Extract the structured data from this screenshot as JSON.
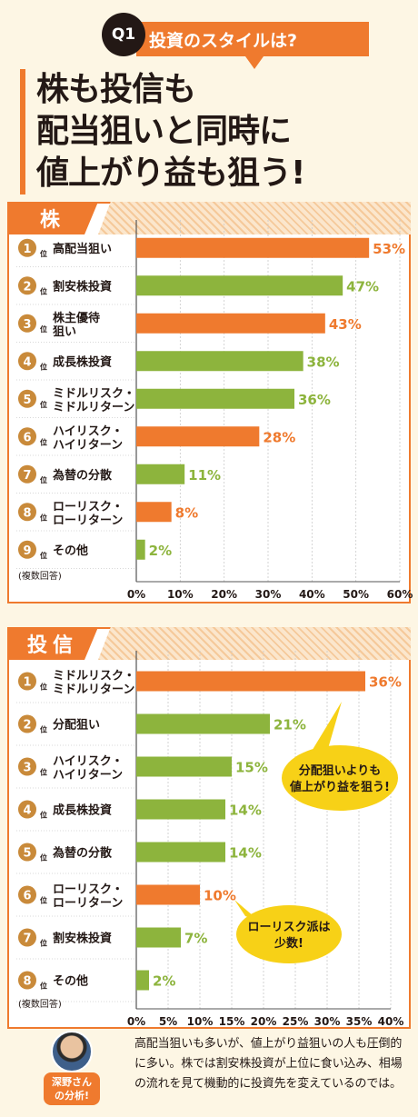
{
  "question": {
    "number": "Q1",
    "title": "投資のスタイルは?"
  },
  "headline": [
    "株も投信も",
    "配当狙いと同時に",
    "値上がり益も狙う!"
  ],
  "rank_suffix": "位",
  "chart_data": [
    {
      "type": "bar",
      "section_label": "株",
      "categories": [
        [
          "高配当狙い"
        ],
        [
          "割安株投資"
        ],
        [
          "株主優待",
          "狙い"
        ],
        [
          "成長株投資"
        ],
        [
          "ミドルリスク・",
          "ミドルリターン"
        ],
        [
          "ハイリスク・",
          "ハイリターン"
        ],
        [
          "為替の分散"
        ],
        [
          "ローリスク・",
          "ローリターン"
        ],
        [
          "その他"
        ]
      ],
      "ranks": [
        1,
        2,
        3,
        4,
        5,
        6,
        7,
        8,
        9
      ],
      "values": [
        53,
        47,
        43,
        38,
        36,
        28,
        11,
        8,
        2
      ],
      "value_labels": [
        "53%",
        "47%",
        "43%",
        "38%",
        "36%",
        "28%",
        "11%",
        "8%",
        "2%"
      ],
      "bar_colors": [
        "#ef7a2e",
        "#8db43d",
        "#ef7a2e",
        "#8db43d",
        "#8db43d",
        "#ef7a2e",
        "#8db43d",
        "#ef7a2e",
        "#8db43d"
      ],
      "xlim": [
        0,
        60
      ],
      "xticks": [
        0,
        10,
        20,
        30,
        40,
        50,
        60
      ],
      "tick_labels": [
        "0%",
        "10%",
        "20%",
        "30%",
        "40%",
        "50%",
        "60%"
      ],
      "grid": true,
      "footnote": "(複数回答)"
    },
    {
      "type": "bar",
      "section_label": "投信",
      "categories": [
        [
          "ミドルリスク・",
          "ミドルリターン"
        ],
        [
          "分配狙い"
        ],
        [
          "ハイリスク・",
          "ハイリターン"
        ],
        [
          "成長株投資"
        ],
        [
          "為替の分散"
        ],
        [
          "ローリスク・",
          "ローリターン"
        ],
        [
          "割安株投資"
        ],
        [
          "その他"
        ]
      ],
      "ranks": [
        1,
        2,
        3,
        4,
        5,
        6,
        7,
        8
      ],
      "values": [
        36,
        21,
        15,
        14,
        14,
        10,
        7,
        2
      ],
      "value_labels": [
        "36%",
        "21%",
        "15%",
        "14%",
        "14%",
        "10%",
        "7%",
        "2%"
      ],
      "bar_colors": [
        "#ef7a2e",
        "#8db43d",
        "#8db43d",
        "#8db43d",
        "#8db43d",
        "#ef7a2e",
        "#8db43d",
        "#8db43d"
      ],
      "xlim": [
        0,
        40
      ],
      "xticks": [
        0,
        5,
        10,
        15,
        20,
        25,
        30,
        35,
        40
      ],
      "tick_labels": [
        "0%",
        "5%",
        "10%",
        "15%",
        "20%",
        "25%",
        "30%",
        "35%",
        "40%"
      ],
      "grid": true,
      "footnote": "(複数回答)",
      "annotations": [
        {
          "text": [
            "分配狙いよりも",
            "値上がり益を狙う!"
          ],
          "points_to": "ミドルリスク・ミドルリターン"
        },
        {
          "text": [
            "ローリスク派は",
            "少数!"
          ],
          "points_to": "ローリスク・ローリターン"
        }
      ]
    }
  ],
  "analyst": {
    "label_line1": "深野さん",
    "label_line2": "の分析!",
    "comment": "高配当狙いも多いが、値上がり益狙いの人も圧倒的に多い。株では割安株投資が上位に食い込み、相場の流れを見て機動的に投資先を変えているのでは。"
  },
  "colors": {
    "accent": "#ef7a2e",
    "green": "#8db43d",
    "bubble": "#f7d117",
    "rank_circle": "#c98a3a"
  }
}
